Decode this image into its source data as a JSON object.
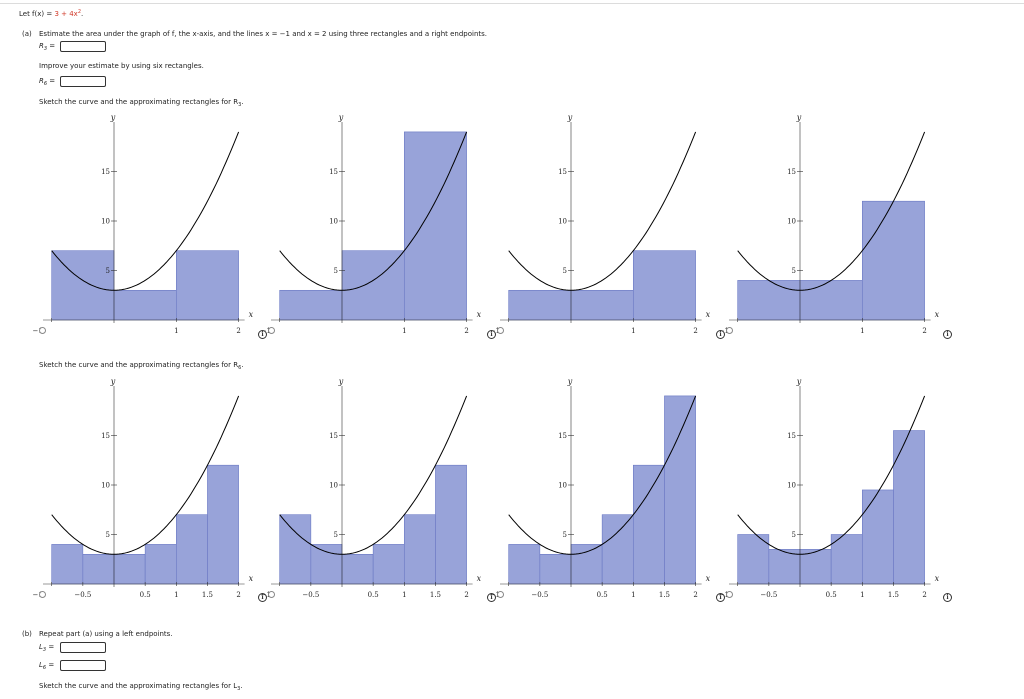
{
  "problem": {
    "prefix": "Let f(x) = ",
    "func": "3 + 4x",
    "func_exp": "2",
    "suffix": "."
  },
  "part_a": {
    "label": "(a)",
    "instruction": "Estimate the area under the graph of f, the x-axis, and the lines x = −1 and x = 2 using three rectangles and a right endpoints.",
    "r3_label": "R",
    "r3_sub": "3",
    "r3_value": "",
    "improve_text": "Improve your estimate by using six rectangles.",
    "r6_label": "R",
    "r6_sub": "6",
    "r6_value": "",
    "sketch_r3_text": "Sketch the curve and the approximating rectangles for R",
    "sketch_r3_sub": "3",
    "sketch_r6_text": "Sketch the curve and the approximating rectangles for R",
    "sketch_r6_sub": "6"
  },
  "part_b": {
    "label": "(b)",
    "instruction": "Repeat part (a) using a left endpoints.",
    "l3_label": "L",
    "l3_sub": "3",
    "l3_value": "",
    "l6_label": "L",
    "l6_sub": "6",
    "l6_value": "",
    "sketch_l3_text": "Sketch the curve and the approximating rectangles for L",
    "sketch_l3_sub": "3"
  },
  "graph_labels": {
    "x_axis": "x",
    "y_axis": "y",
    "y_ticks": [
      "5",
      "10",
      "15"
    ],
    "x_ticks_3": [
      "−1",
      "1",
      "2"
    ],
    "x_ticks_6": [
      "−1",
      "−0.5",
      "0.5",
      "1",
      "1.5",
      "2"
    ]
  },
  "colors": {
    "rect_fill": "#98a3d9",
    "rect_stroke": "#6a78c4",
    "curve": "#000000"
  },
  "chart_data": [
    {
      "type": "bar",
      "title": "",
      "rectangles": 3,
      "heights": [
        7,
        3,
        7
      ],
      "x_range": [
        -1,
        2
      ],
      "y_range": [
        0,
        19
      ]
    },
    {
      "type": "bar",
      "title": "",
      "rectangles": 3,
      "heights": [
        3,
        7,
        19
      ],
      "x_range": [
        -1,
        2
      ],
      "y_range": [
        0,
        19
      ]
    },
    {
      "type": "bar",
      "title": "",
      "rectangles": 3,
      "heights": [
        3,
        3,
        7
      ],
      "x_range": [
        -1,
        2
      ],
      "y_range": [
        0,
        19
      ]
    },
    {
      "type": "bar",
      "title": "",
      "rectangles": 3,
      "heights": [
        4,
        4,
        12
      ],
      "x_range": [
        -1,
        2
      ],
      "y_range": [
        0,
        19
      ]
    },
    {
      "type": "bar",
      "title": "",
      "rectangles": 6,
      "heights": [
        4,
        3,
        3,
        4,
        7,
        12
      ],
      "x_range": [
        -1,
        2
      ],
      "y_range": [
        0,
        19
      ]
    },
    {
      "type": "bar",
      "title": "",
      "rectangles": 6,
      "heights": [
        7,
        4,
        3,
        4,
        7,
        12
      ],
      "x_range": [
        -1,
        2
      ],
      "y_range": [
        0,
        19
      ]
    },
    {
      "type": "bar",
      "title": "",
      "rectangles": 6,
      "heights": [
        4,
        3,
        4,
        7,
        12,
        19
      ],
      "x_range": [
        -1,
        2
      ],
      "y_range": [
        0,
        19
      ]
    },
    {
      "type": "bar",
      "title": "",
      "rectangles": 6,
      "heights": [
        5,
        3.5,
        3.5,
        5,
        9.5,
        15.5
      ],
      "x_range": [
        -1,
        2
      ],
      "y_range": [
        0,
        19
      ]
    }
  ]
}
